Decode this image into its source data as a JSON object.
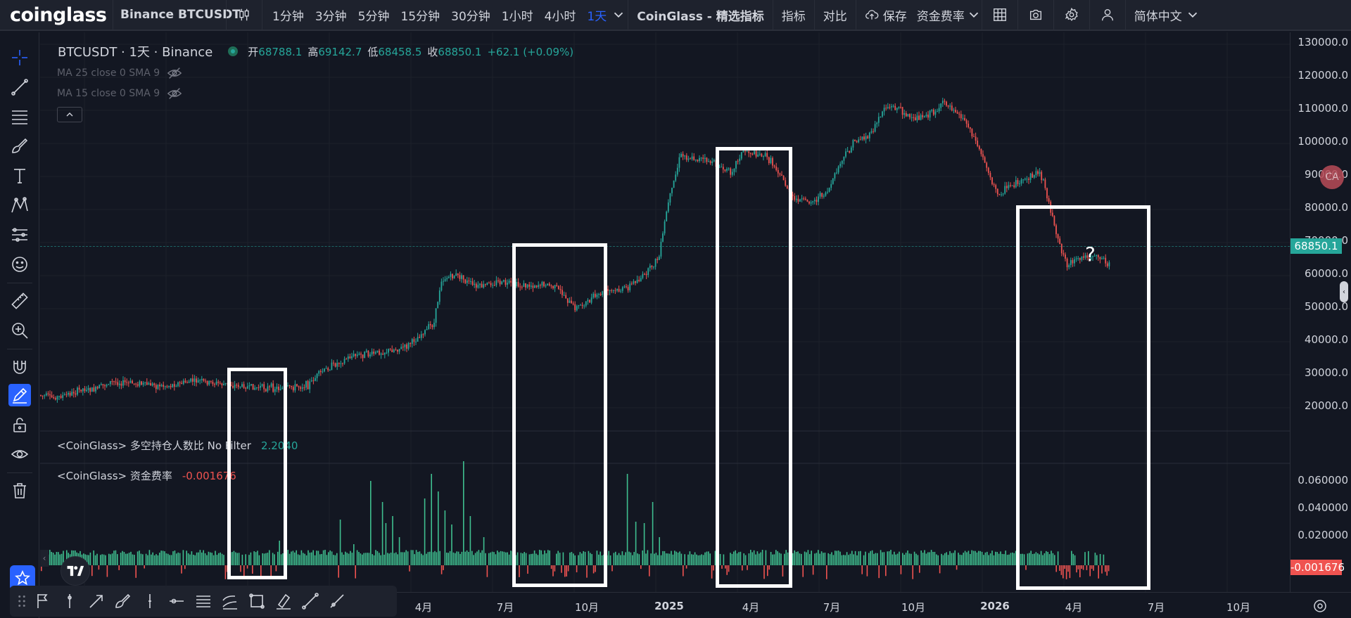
{
  "topbar": {
    "logo": "coinglass",
    "symbol": "Binance BTCUSDT",
    "intervals": [
      "1分钟",
      "3分钟",
      "5分钟",
      "15分钟",
      "30分钟",
      "1小时",
      "4小时",
      "1天"
    ],
    "active_interval": "1天",
    "featured_indicators": "CoinGlass - 精选指标",
    "indicators": "指标",
    "compare": "对比",
    "save": "保存",
    "funding_rate_menu": "资金费率",
    "language": "简体中文"
  },
  "legend": {
    "title": "BTCUSDT · 1天 · Binance",
    "open_label": "开",
    "open": "68788.1",
    "high_label": "高",
    "high": "69142.7",
    "low_label": "低",
    "low": "68458.5",
    "close_label": "收",
    "close": "68850.1",
    "change": "+62.1 (+0.09%)"
  },
  "studies": {
    "ma1": "MA 25 close 0 SMA 9",
    "ma2": "MA 15 close 0 SMA 9",
    "ls_ratio_label": "<CoinGlass> 多空持仓人数比 No Filter",
    "ls_ratio_value": "2.2040",
    "funding_label": "<CoinGlass> 资金费率",
    "funding_value": "-0.001676"
  },
  "price_scale": {
    "ticks": [
      "130000.0",
      "120000.0",
      "110000.0",
      "100000.0",
      "90000.0",
      "80000.0",
      "70000.0",
      "60000.0",
      "50000.0",
      "40000.0",
      "30000.0",
      "20000.0"
    ],
    "last_price": "68850.1",
    "funding_ticks": [
      "0.060000",
      "0.040000",
      "0.020000"
    ],
    "funding_last": "-0.001676"
  },
  "time_axis": {
    "ticks": [
      {
        "label": "4月",
        "bold": false
      },
      {
        "label": "7月",
        "bold": false
      },
      {
        "label": "10月",
        "bold": false
      },
      {
        "label": "2025",
        "bold": true
      },
      {
        "label": "4月",
        "bold": false
      },
      {
        "label": "7月",
        "bold": false
      },
      {
        "label": "10月",
        "bold": false
      },
      {
        "label": "2026",
        "bold": true
      },
      {
        "label": "4月",
        "bold": false
      },
      {
        "label": "7月",
        "bold": false
      },
      {
        "label": "10月",
        "bold": false
      }
    ]
  },
  "annotation": {
    "question_mark": "?"
  },
  "badge": "CA",
  "colors": {
    "up": "#26a69a",
    "down": "#ef5350",
    "accent": "#2962ff",
    "volume": "#3fbf8f",
    "annotation": "#ffffff"
  },
  "icons": [
    "candlestick-icon",
    "chevron-down-icon",
    "cloud-upload-icon",
    "grid-layout-icon",
    "camera-icon",
    "gear-icon",
    "user-icon",
    "crosshair-icon",
    "trendline-icon",
    "fib-icon",
    "brush-icon",
    "text-icon",
    "pattern-icon",
    "forecast-icon",
    "emoji-icon",
    "ruler-icon",
    "zoom-icon",
    "magnet-icon",
    "lock-edit-icon",
    "unlock-icon",
    "eye-icon",
    "trash-icon",
    "star-icon",
    "eye-off-icon"
  ]
}
